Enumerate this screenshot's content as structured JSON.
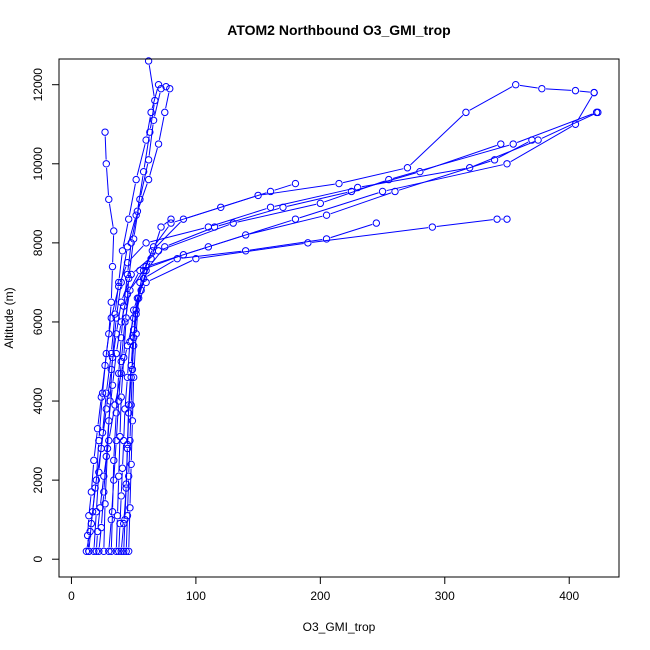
{
  "chart_data": {
    "type": "line",
    "title": "ATOM2 Northbound O3_GMI_trop",
    "xlabel": "O3_GMI_trop",
    "ylabel": "Altitude (m)",
    "xlim": [
      -10,
      440
    ],
    "ylim": [
      -450,
      12650
    ],
    "xticks": [
      0,
      100,
      200,
      300,
      400
    ],
    "yticks": [
      0,
      2000,
      4000,
      6000,
      8000,
      10000,
      12000
    ],
    "color": "#0000ff",
    "marker": "open-circle",
    "grid": false,
    "series": [
      {
        "points": [
          [
            12,
            200
          ],
          [
            15,
            700
          ],
          [
            17,
            1200
          ],
          [
            20,
            2000
          ],
          [
            22,
            3000
          ],
          [
            25,
            4200
          ],
          [
            28,
            5200
          ],
          [
            32,
            6100
          ],
          [
            38,
            6900
          ],
          [
            45,
            7500
          ],
          [
            60,
            8000
          ],
          [
            110,
            8400
          ],
          [
            160,
            8900
          ],
          [
            230,
            9400
          ],
          [
            320,
            9900
          ],
          [
            375,
            10600
          ],
          [
            423,
            11300
          ]
        ]
      },
      {
        "points": [
          [
            14,
            200
          ],
          [
            16,
            900
          ],
          [
            19,
            1800
          ],
          [
            24,
            2800
          ],
          [
            28,
            3800
          ],
          [
            32,
            4800
          ],
          [
            36,
            5700
          ],
          [
            40,
            6500
          ],
          [
            48,
            7200
          ],
          [
            70,
            7800
          ],
          [
            130,
            8500
          ],
          [
            200,
            9000
          ],
          [
            255,
            9600
          ],
          [
            355,
            10500
          ],
          [
            422,
            11300
          ]
        ]
      },
      {
        "points": [
          [
            30,
            200
          ],
          [
            32,
            1000
          ],
          [
            34,
            2000
          ],
          [
            36,
            3000
          ],
          [
            38,
            4000
          ],
          [
            40,
            5000
          ],
          [
            43,
            6000
          ],
          [
            47,
            6800
          ],
          [
            60,
            7400
          ],
          [
            110,
            7900
          ],
          [
            180,
            8600
          ],
          [
            250,
            9300
          ],
          [
            350,
            10000
          ],
          [
            405,
            11000
          ],
          [
            420,
            11800
          ]
        ]
      },
      {
        "points": [
          [
            40,
            200
          ],
          [
            42,
            900
          ],
          [
            44,
            1800
          ],
          [
            45,
            2800
          ],
          [
            46,
            3700
          ],
          [
            48,
            4600
          ],
          [
            50,
            5400
          ],
          [
            52,
            6200
          ],
          [
            55,
            7000
          ],
          [
            65,
            7800
          ],
          [
            90,
            8600
          ],
          [
            150,
            9200
          ],
          [
            215,
            9500
          ],
          [
            270,
            9900
          ],
          [
            317,
            11300
          ],
          [
            357,
            12000
          ],
          [
            378,
            11900
          ],
          [
            405,
            11850
          ],
          [
            420,
            11800
          ]
        ]
      },
      {
        "points": [
          [
            44,
            200
          ],
          [
            45,
            1100
          ],
          [
            46,
            2100
          ],
          [
            47,
            3000
          ],
          [
            48,
            3900
          ],
          [
            49,
            4800
          ],
          [
            50,
            5600
          ],
          [
            52,
            6300
          ],
          [
            60,
            7000
          ],
          [
            100,
            7600
          ],
          [
            190,
            8000
          ],
          [
            290,
            8400
          ],
          [
            342,
            8600
          ],
          [
            350,
            8600
          ]
        ]
      },
      {
        "points": [
          [
            18,
            200
          ],
          [
            20,
            1200
          ],
          [
            22,
            2200
          ],
          [
            25,
            3200
          ],
          [
            28,
            4200
          ],
          [
            32,
            5200
          ],
          [
            35,
            6200
          ],
          [
            38,
            7000
          ],
          [
            41,
            7800
          ],
          [
            46,
            8600
          ],
          [
            52,
            9600
          ],
          [
            60,
            10600
          ],
          [
            64,
            11300
          ],
          [
            70,
            12000
          ]
        ]
      },
      {
        "points": [
          [
            36,
            200
          ],
          [
            37,
            1100
          ],
          [
            38,
            2100
          ],
          [
            39,
            3100
          ],
          [
            40,
            4100
          ],
          [
            42,
            5100
          ],
          [
            44,
            6100
          ],
          [
            46,
            7100
          ],
          [
            50,
            8100
          ],
          [
            55,
            9100
          ],
          [
            62,
            10100
          ],
          [
            66,
            11100
          ],
          [
            72,
            11900
          ],
          [
            76,
            11950
          ]
        ]
      },
      {
        "points": [
          [
            22,
            200
          ],
          [
            24,
            800
          ],
          [
            26,
            1700
          ],
          [
            28,
            2600
          ],
          [
            30,
            3500
          ],
          [
            33,
            4400
          ],
          [
            36,
            5200
          ],
          [
            40,
            6000
          ],
          [
            45,
            6700
          ],
          [
            55,
            7300
          ],
          [
            90,
            7700
          ],
          [
            140,
            8200
          ],
          [
            205,
            8700
          ],
          [
            260,
            9300
          ],
          [
            340,
            10100
          ],
          [
            370,
            10600
          ]
        ]
      },
      {
        "points": [
          [
            46,
            200
          ],
          [
            47,
            1300
          ],
          [
            48,
            2400
          ],
          [
            49,
            3500
          ],
          [
            50,
            4600
          ],
          [
            52,
            5700
          ],
          [
            54,
            6600
          ],
          [
            60,
            7300
          ],
          [
            75,
            7900
          ],
          [
            115,
            8400
          ],
          [
            170,
            8900
          ],
          [
            225,
            9300
          ],
          [
            280,
            9800
          ],
          [
            345,
            10500
          ]
        ]
      },
      {
        "points": [
          [
            26,
            200
          ],
          [
            27,
            1400
          ],
          [
            29,
            2800
          ],
          [
            31,
            4000
          ],
          [
            33,
            5100
          ],
          [
            36,
            6100
          ],
          [
            40,
            7000
          ],
          [
            45,
            7900
          ],
          [
            52,
            8700
          ],
          [
            62,
            9600
          ],
          [
            70,
            10500
          ],
          [
            75,
            11300
          ],
          [
            79,
            11900
          ]
        ]
      },
      {
        "points": [
          [
            32,
            200
          ],
          [
            33,
            1200
          ],
          [
            34,
            2500
          ],
          [
            36,
            3700
          ],
          [
            38,
            4700
          ],
          [
            40,
            5600
          ],
          [
            42,
            6400
          ],
          [
            45,
            7200
          ],
          [
            48,
            8000
          ],
          [
            53,
            8800
          ],
          [
            58,
            9800
          ],
          [
            63,
            10800
          ],
          [
            67,
            11600
          ],
          [
            62,
            12600
          ]
        ]
      },
      {
        "points": [
          [
            38,
            200
          ],
          [
            39,
            900
          ],
          [
            40,
            1600
          ],
          [
            41,
            2300
          ],
          [
            42,
            3000
          ],
          [
            43,
            3800
          ],
          [
            45,
            4600
          ],
          [
            47,
            5500
          ],
          [
            50,
            6300
          ],
          [
            58,
            7100
          ],
          [
            85,
            7600
          ],
          [
            140,
            7800
          ],
          [
            205,
            8100
          ],
          [
            245,
            8500
          ]
        ]
      },
      {
        "points": [
          [
            20,
            200
          ],
          [
            21,
            700
          ],
          [
            23,
            1300
          ],
          [
            26,
            2100
          ],
          [
            30,
            3000
          ],
          [
            35,
            3900
          ],
          [
            40,
            4700
          ],
          [
            45,
            5400
          ],
          [
            50,
            6100
          ],
          [
            56,
            6800
          ],
          [
            64,
            7600
          ],
          [
            72,
            8400
          ],
          [
            80,
            8600
          ]
        ]
      },
      {
        "points": [
          [
            14,
            200
          ],
          [
            13,
            600
          ],
          [
            14,
            1100
          ],
          [
            16,
            1700
          ],
          [
            18,
            2500
          ],
          [
            21,
            3300
          ],
          [
            24,
            4100
          ],
          [
            27,
            4900
          ],
          [
            30,
            5700
          ],
          [
            32,
            6500
          ],
          [
            33,
            7400
          ],
          [
            34,
            8300
          ],
          [
            30,
            9100
          ],
          [
            28,
            10000
          ],
          [
            27,
            10800
          ]
        ]
      },
      {
        "points": [
          [
            42,
            200
          ],
          [
            43,
            1000
          ],
          [
            44,
            1900
          ],
          [
            45,
            2900
          ],
          [
            46,
            3900
          ],
          [
            48,
            4900
          ],
          [
            50,
            5800
          ],
          [
            53,
            6600
          ],
          [
            58,
            7300
          ],
          [
            66,
            7900
          ],
          [
            80,
            8500
          ],
          [
            120,
            8900
          ],
          [
            160,
            9300
          ],
          [
            180,
            9500
          ]
        ]
      }
    ]
  }
}
